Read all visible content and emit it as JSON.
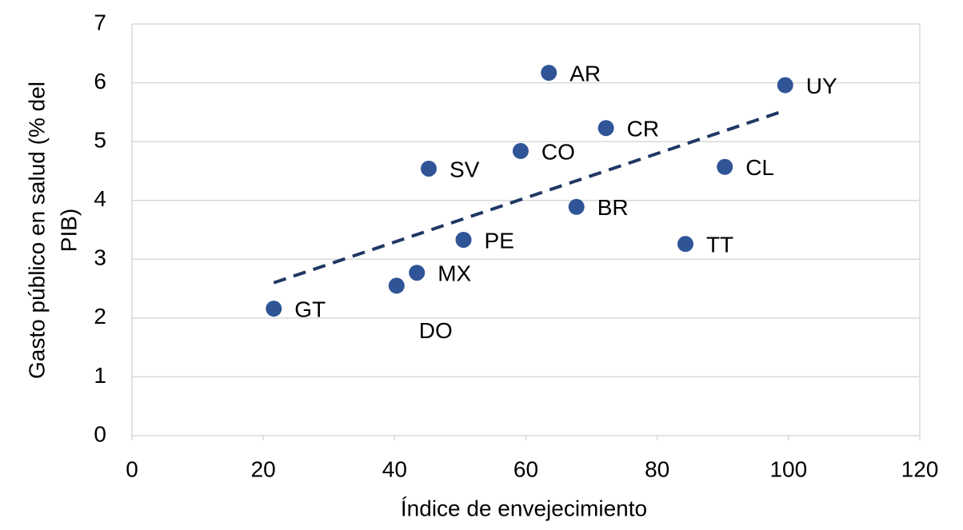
{
  "chart_data": {
    "type": "scatter",
    "xlabel": "Índice de envejecimiento",
    "ylabel": [
      "Gasto público en salud (% del",
      "PIB)"
    ],
    "labels": [
      "GT",
      "DO",
      "MX",
      "SV",
      "PE",
      "CO",
      "AR",
      "BR",
      "CR",
      "TT",
      "CL",
      "UY"
    ],
    "label_positions": [
      "right",
      "below",
      "right",
      "right",
      "right",
      "right",
      "right",
      "right",
      "right",
      "right",
      "right",
      "right"
    ],
    "x": [
      21.6,
      40.3,
      43.4,
      45.2,
      50.5,
      59.2,
      63.5,
      67.7,
      72.2,
      84.3,
      90.3,
      99.5
    ],
    "values": [
      2.16,
      2.55,
      2.77,
      4.54,
      3.33,
      4.84,
      6.17,
      3.89,
      5.23,
      3.26,
      4.57,
      5.96
    ],
    "color": "#2f5597",
    "trendline": {
      "x": [
        21.6,
        99.5
      ],
      "y": [
        2.6,
        5.53
      ],
      "color": "#203864"
    },
    "xlim": [
      0,
      120
    ],
    "xticks": [
      0,
      20,
      40,
      60,
      80,
      100,
      120
    ],
    "ylim": [
      0,
      7
    ],
    "yticks": [
      0,
      1,
      2,
      3,
      4,
      5,
      6,
      7
    ],
    "grid": true
  }
}
